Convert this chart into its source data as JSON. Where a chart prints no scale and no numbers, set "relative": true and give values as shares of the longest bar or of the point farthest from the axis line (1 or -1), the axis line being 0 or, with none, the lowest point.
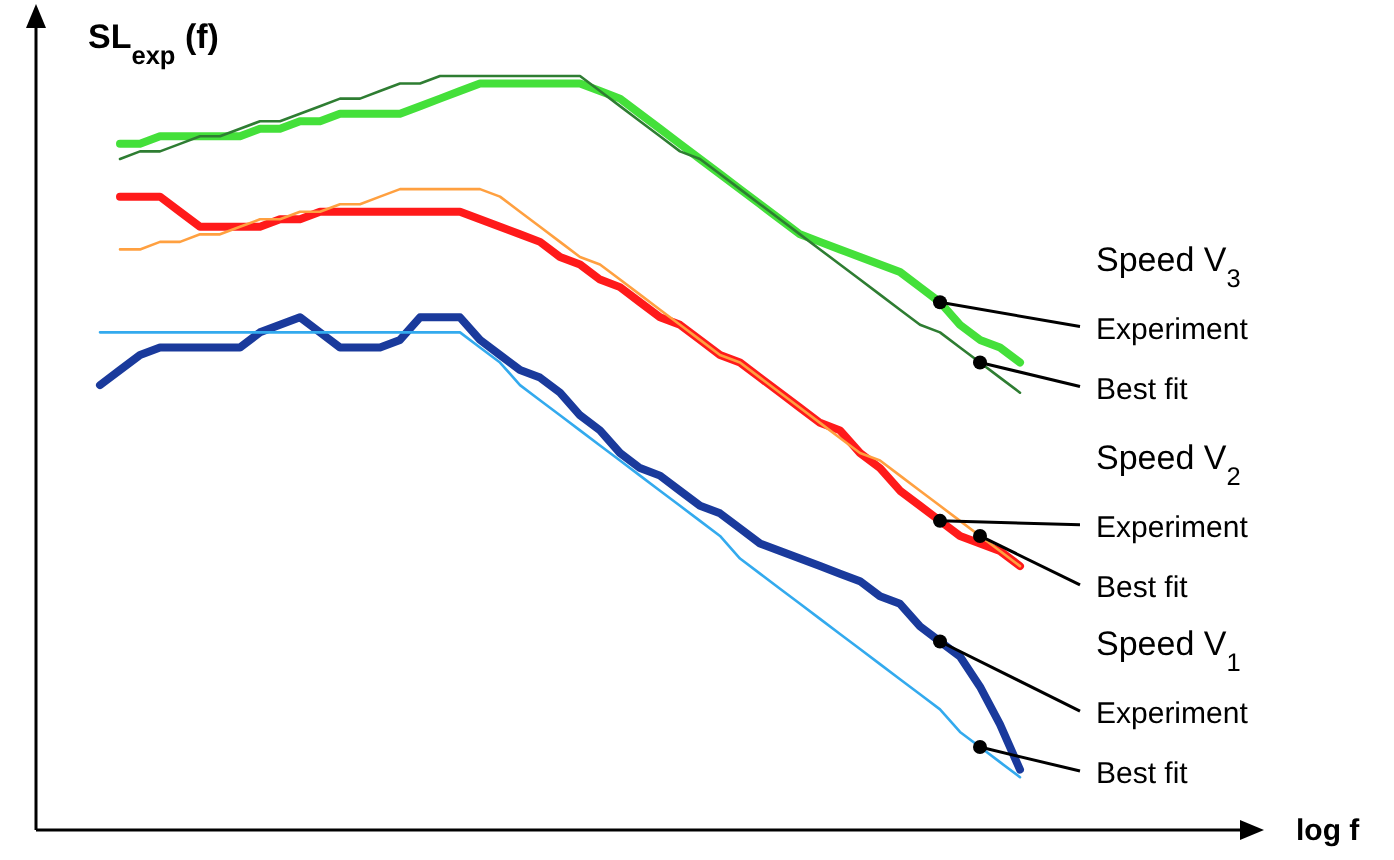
{
  "chart_data": {
    "type": "line",
    "relative": true,
    "ylabel": "SL$_{exp}$ (f)",
    "legend": "right",
    "line_style": "solid",
    "categories": [
      null,
      null,
      null,
      null,
      null,
      null,
      null,
      null,
      null,
      null,
      null,
      null,
      null,
      null,
      null,
      null,
      null,
      null,
      null,
      null,
      null,
      null,
      null,
      null,
      null,
      null,
      null,
      null,
      null,
      null,
      null,
      null,
      null,
      null,
      null,
      null,
      null,
      null,
      null,
      null,
      null,
      null,
      null,
      null,
      null,
      null,
      null
    ],
    "series": [
      {
        "name": "Experiment",
        "color": "#44e03a",
        "values": [
          null,
          0.91,
          0.91,
          0.92,
          0.92,
          0.92,
          0.92,
          0.92,
          0.93,
          0.93,
          0.94,
          0.94,
          0.95,
          0.95,
          0.95,
          0.95,
          0.96,
          0.97,
          0.98,
          0.99,
          0.99,
          0.99,
          0.99,
          0.99,
          0.99,
          0.98,
          0.97,
          0.95,
          0.93,
          0.91,
          0.89,
          0.87,
          0.85,
          0.83,
          0.81,
          0.79,
          0.78,
          0.77,
          0.76,
          0.75,
          0.74,
          0.72,
          0.7,
          0.67,
          0.65,
          0.64,
          0.62
        ]
      },
      {
        "name": "Best fit",
        "color": "#2e7d32",
        "values": [
          null,
          0.89,
          0.9,
          0.9,
          0.91,
          0.92,
          0.92,
          0.93,
          0.94,
          0.94,
          0.95,
          0.96,
          0.97,
          0.97,
          0.98,
          0.99,
          0.99,
          1,
          1,
          1,
          1,
          1,
          1,
          1,
          1,
          0.98,
          0.96,
          0.94,
          0.92,
          0.9,
          0.89,
          0.87,
          0.85,
          0.83,
          0.81,
          0.79,
          0.77,
          0.75,
          0.73,
          0.71,
          0.69,
          0.67,
          0.66,
          0.64,
          0.62,
          0.6,
          0.58
        ]
      },
      {
        "name": "Experiment",
        "color": "#ff1a1a",
        "values": [
          null,
          0.84,
          0.84,
          0.84,
          0.82,
          0.8,
          0.8,
          0.8,
          0.8,
          0.81,
          0.81,
          0.82,
          0.82,
          0.82,
          0.82,
          0.82,
          0.82,
          0.82,
          0.82,
          0.81,
          0.8,
          0.79,
          0.78,
          0.76,
          0.75,
          0.73,
          0.72,
          0.7,
          0.68,
          0.67,
          0.65,
          0.63,
          0.62,
          0.6,
          0.58,
          0.56,
          0.54,
          0.53,
          0.5,
          0.48,
          0.45,
          0.43,
          0.41,
          0.39,
          0.38,
          0.37,
          0.35
        ]
      },
      {
        "name": "Best fit",
        "color": "#ffa040",
        "values": [
          null,
          0.77,
          0.77,
          0.78,
          0.78,
          0.79,
          0.79,
          0.8,
          0.81,
          0.81,
          0.82,
          0.82,
          0.83,
          0.83,
          0.84,
          0.85,
          0.85,
          0.85,
          0.85,
          0.85,
          0.84,
          0.82,
          0.8,
          0.78,
          0.76,
          0.75,
          0.73,
          0.71,
          0.69,
          0.67,
          0.65,
          0.63,
          0.62,
          0.6,
          0.58,
          0.56,
          0.54,
          0.52,
          0.5,
          0.49,
          0.47,
          0.45,
          0.43,
          0.41,
          0.39,
          0.37,
          0.35
        ]
      },
      {
        "name": "Experiment",
        "color": "#1a3a9c",
        "values": [
          0.59,
          0.61,
          0.63,
          0.64,
          0.64,
          0.64,
          0.64,
          0.64,
          0.66,
          0.67,
          0.68,
          0.66,
          0.64,
          0.64,
          0.64,
          0.65,
          0.68,
          0.68,
          0.68,
          0.65,
          0.63,
          0.61,
          0.6,
          0.58,
          0.55,
          0.53,
          0.5,
          0.48,
          0.47,
          0.45,
          0.43,
          0.42,
          0.4,
          0.38,
          0.37,
          0.36,
          0.35,
          0.34,
          0.33,
          0.31,
          0.3,
          0.27,
          0.25,
          0.23,
          0.19,
          0.14,
          0.08
        ]
      },
      {
        "name": "Best fit",
        "color": "#33aaee",
        "values": [
          0.66,
          0.66,
          0.66,
          0.66,
          0.66,
          0.66,
          0.66,
          0.66,
          0.66,
          0.66,
          0.66,
          0.66,
          0.66,
          0.66,
          0.66,
          0.66,
          0.66,
          0.66,
          0.66,
          0.64,
          0.62,
          0.59,
          0.57,
          0.55,
          0.53,
          0.51,
          0.49,
          0.47,
          0.45,
          0.43,
          0.41,
          0.39,
          0.36,
          0.34,
          0.32,
          0.3,
          0.28,
          0.26,
          0.24,
          0.22,
          0.2,
          0.18,
          0.16,
          0.13,
          0.11,
          0.09,
          0.07
        ]
      }
    ],
    "annotations": [
      "Speed V$_{3}$",
      "Speed V$_{2}$",
      "Speed V$_{1}$",
      "log f"
    ]
  }
}
